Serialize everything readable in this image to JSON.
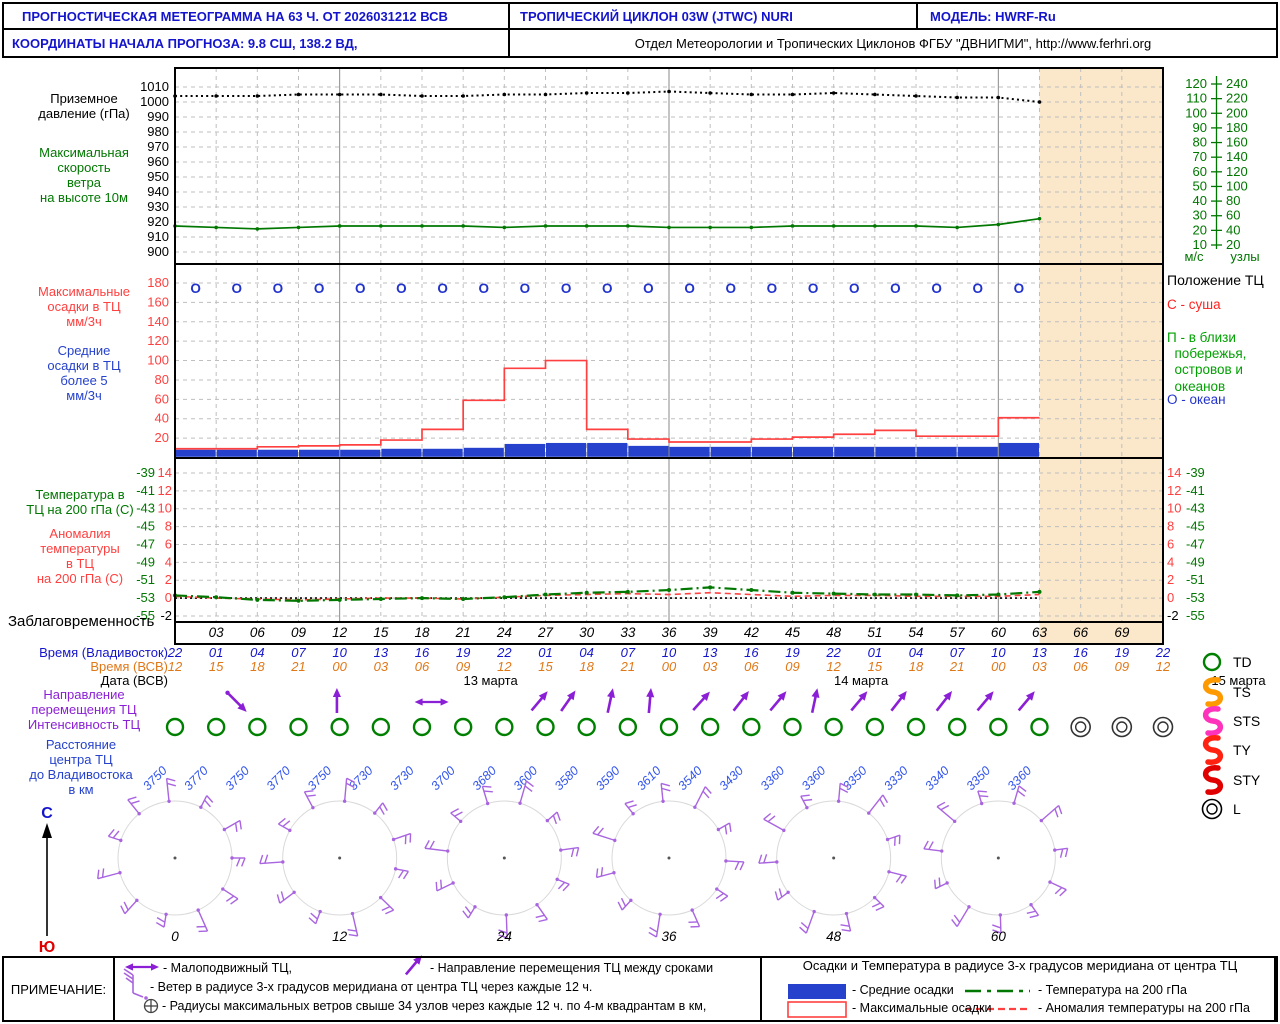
{
  "header": {
    "title": "ПРОГНОСТИЧЕСКАЯ МЕТЕОГРАММА НА 63 Ч. ОТ 2026031212 ВСВ",
    "cyclone": "ТРОПИЧЕСКИЙ ЦИКЛОН  03W (JTWC)   NURI",
    "model": "МОДЕЛЬ:   HWRF-Ru",
    "coords": "КООРДИНАТЫ НАЧАЛА ПРОГНОЗА:  9.8  СШ,    138.2  ВД,",
    "org": "Отдел Метеорологии и Тропических Циклонов ФГБУ \"ДВНИГМИ\",  http://www.ferhri.org"
  },
  "left_labels": {
    "pressure": "Приземное\nдавление (гПа)",
    "wind": "Максимальная\nскорость\nветра\nна высоте 10м",
    "precip_max": "Максимальные\nосадки в ТЦ\nмм/3ч",
    "precip_avg": "Средние\nосадки в ТЦ\nболее 5\nмм/3ч",
    "temp": "Температура в\nТЦ на 200 гПа (С)",
    "anomaly": "Аномалия\nтемпературы\nв ТЦ\nна 200 гПа (С)",
    "lead": "Заблаговременность",
    "vlad": "Время (Владивосток)",
    "utc": "Время (ВСВ)",
    "date": "Дата (ВСВ)",
    "direction": "Направление\nперемещения ТЦ",
    "intensity": "Интенсивность ТЦ",
    "distance": "Расстояние\nцентра ТЦ\nдо Владивостока\nв км",
    "note": "ПРИМЕЧАНИЕ:"
  },
  "right_panel": {
    "units_ms": "м/с",
    "units_knots": "узлы",
    "position_title": "Положение ТЦ",
    "land": "С - суша",
    "coast": "П - в близи\n  побережья,\n  островов и\n  океанов",
    "ocean": "О - океан"
  },
  "axes": {
    "pressure_hpa": [
      1010,
      1000,
      990,
      980,
      970,
      960,
      950,
      940,
      930,
      920,
      910,
      900
    ],
    "wind_ms": [
      120,
      110,
      100,
      90,
      80,
      70,
      60,
      50,
      40,
      30,
      20,
      10
    ],
    "wind_knots": [
      240,
      220,
      200,
      180,
      160,
      140,
      120,
      100,
      80,
      60,
      40,
      20
    ],
    "precip_mm": [
      180,
      160,
      140,
      120,
      100,
      80,
      60,
      40,
      20
    ],
    "anomaly_c": [
      14,
      12,
      10,
      8,
      6,
      4,
      2,
      0,
      -2
    ],
    "temp_c": [
      -39,
      -41,
      -43,
      -45,
      -47,
      -49,
      -51,
      -53,
      -55
    ]
  },
  "intensity_legend": [
    {
      "code": "TD",
      "symbol": "circle",
      "color": "#008000"
    },
    {
      "code": "TS",
      "symbol": "cyclone",
      "color": "#FF9900"
    },
    {
      "code": "STS",
      "symbol": "cyclone",
      "color": "#FF33BB"
    },
    {
      "code": "TY",
      "symbol": "cyclone",
      "color": "#FF2211"
    },
    {
      "code": "STY",
      "symbol": "cyclone",
      "color": "#E00000"
    },
    {
      "code": "L",
      "symbol": "double-circle",
      "color": "#000000"
    }
  ],
  "time_axis": {
    "lead": [
      "03",
      "06",
      "09",
      "12",
      "15",
      "18",
      "21",
      "24",
      "27",
      "30",
      "33",
      "36",
      "39",
      "42",
      "45",
      "48",
      "51",
      "54",
      "57",
      "60",
      "63",
      "66",
      "69"
    ],
    "vladivostok": [
      "22",
      "01",
      "04",
      "07",
      "10",
      "13",
      "16",
      "19",
      "22",
      "01",
      "04",
      "07",
      "10",
      "13",
      "16",
      "19",
      "22",
      "01",
      "04",
      "07",
      "10",
      "13",
      "16",
      "19",
      "22"
    ],
    "utc": [
      "12",
      "15",
      "18",
      "21",
      "00",
      "03",
      "06",
      "09",
      "12",
      "15",
      "18",
      "21",
      "00",
      "03",
      "06",
      "09",
      "12",
      "15",
      "18",
      "21",
      "00",
      "03",
      "06",
      "09",
      "12"
    ],
    "dates": [
      {
        "label": "13 марта",
        "h": 23
      },
      {
        "label": "14 марта",
        "h": 50
      },
      {
        "label": "15 марта",
        "h": 77.5
      }
    ]
  },
  "track": {
    "distances_km": [
      "3750",
      "3770",
      "3750",
      "3770",
      "3750",
      "3730",
      "3730",
      "3700",
      "3680",
      "3600",
      "3580",
      "3590",
      "3610",
      "3540",
      "3430",
      "3360",
      "3360",
      "3350",
      "3330",
      "3340",
      "3350",
      "3360"
    ],
    "intensity_td_hours": [
      0,
      3,
      6,
      9,
      12,
      15,
      18,
      21,
      24,
      27,
      30,
      33,
      36,
      39,
      42,
      45,
      48,
      51,
      54,
      57,
      60,
      63
    ],
    "intensity_l_hours": [
      66,
      69,
      72
    ],
    "direction_arrows": [
      {
        "h": 4.5,
        "angle": 135,
        "dot": true
      },
      {
        "h": 11.8,
        "angle": 0
      },
      {
        "h": 18.7,
        "stationary": true
      },
      {
        "h": 26.5,
        "angle": 40
      },
      {
        "h": 28.6,
        "angle": 35
      },
      {
        "h": 31.7,
        "angle": 12
      },
      {
        "h": 34.6,
        "angle": 5
      },
      {
        "h": 38.3,
        "angle": 42
      },
      {
        "h": 41.2,
        "angle": 38
      },
      {
        "h": 43.9,
        "angle": 40
      },
      {
        "h": 46.6,
        "angle": 12
      },
      {
        "h": 49.8,
        "angle": 40
      },
      {
        "h": 52.7,
        "angle": 38
      },
      {
        "h": 56,
        "angle": 38
      },
      {
        "h": 59,
        "angle": 40
      },
      {
        "h": 62,
        "angle": 40
      }
    ],
    "rose_hours": [
      0,
      12,
      24,
      36,
      48,
      60
    ],
    "rose_labels": [
      "0",
      "12",
      "24",
      "36",
      "48",
      "60"
    ]
  },
  "compass": {
    "north": "С",
    "south": "Ю"
  },
  "notes": {
    "stationary": "- Малоподвижный ТЦ,",
    "direction": "- Направление перемещения ТЦ между сроками",
    "wind": "- Ветер в радиусе 3-х градусов меридиана от центра ТЦ через каждые 12 ч.",
    "radii": "- Радиусы максимальных ветров свыше 34 узлов через каждые 12 ч. по 4-м квадрантам в км,"
  },
  "legend": {
    "title": "Осадки и Температура в радиусе 3-х градусов меридиана от центра ТЦ",
    "avg": "- Средние осадки",
    "max": "- Максимальные осадки",
    "temp": "- Температура на 200 гПа",
    "anom": "- Аномалия температуры на 200 гПа"
  },
  "colors": {
    "header_blue": "#1414CC",
    "green": "#007700",
    "red": "#FF4040",
    "blue": "#2642CC",
    "marker_blue": "#2233CC",
    "orange": "#E07818",
    "purple": "#8B1FD6",
    "barb": "#A964E0",
    "shade": "#FBE7C9",
    "grid": "#BFBFBF",
    "dateline": "#8A8A8A",
    "dist_blue": "#3355EE"
  },
  "chart_data": [
    {
      "type": "line",
      "panel": "surface-pressure-and-max-wind",
      "x_hours": [
        0,
        3,
        6,
        9,
        12,
        15,
        18,
        21,
        24,
        27,
        30,
        33,
        36,
        39,
        42,
        45,
        48,
        51,
        54,
        57,
        60,
        63
      ],
      "series": [
        {
          "name": "Приземное давление (гПа)",
          "color": "#000000",
          "style": "dotted",
          "values": [
            1004,
            1004,
            1004,
            1005,
            1005,
            1005,
            1004,
            1004,
            1005,
            1005,
            1006,
            1006,
            1007,
            1006,
            1005,
            1005,
            1006,
            1005,
            1004,
            1003,
            1003,
            1000
          ]
        },
        {
          "name": "Максимальная скорость ветра на высоте 10м (м/с)",
          "color": "#007700",
          "style": "solid",
          "values": [
            23,
            22,
            21,
            22,
            23,
            23,
            23,
            23,
            22,
            23,
            23,
            23,
            22,
            22,
            22,
            23,
            23,
            23,
            23,
            22,
            24,
            28
          ]
        }
      ],
      "ylim_hpa": [
        900,
        1010
      ],
      "ylim_ms": [
        10,
        120
      ],
      "ylim_knots": [
        20,
        240
      ],
      "grid": true
    },
    {
      "type": "bar",
      "panel": "precipitation",
      "interval_start_hours": [
        0,
        3,
        6,
        9,
        12,
        15,
        18,
        21,
        24,
        27,
        30,
        33,
        36,
        39,
        42,
        45,
        48,
        51,
        54,
        57,
        60
      ],
      "interval_length_hours": 3,
      "series": [
        {
          "name": "Максимальные осадки в ТЦ (мм/3ч)",
          "style": "step-outline",
          "color": "#FF4040",
          "values": [
            9,
            9,
            11,
            12,
            13,
            18,
            29,
            59,
            92,
            100,
            29,
            19,
            16,
            16,
            19,
            21,
            24,
            28,
            22,
            22,
            41
          ]
        },
        {
          "name": "Средние осадки в ТЦ (мм/3ч)",
          "style": "bar",
          "color": "#2642CC",
          "values": [
            8,
            8,
            8,
            8,
            8,
            9,
            9,
            10,
            14,
            15,
            15,
            12,
            11,
            11,
            11,
            11,
            11,
            11,
            11,
            11,
            15
          ]
        }
      ],
      "ylim": [
        0,
        180
      ],
      "position_markers": {
        "symbol": "О",
        "meaning": "океан",
        "hours_mid": [
          1.5,
          4.5,
          7.5,
          10.5,
          13.5,
          16.5,
          19.5,
          22.5,
          25.5,
          28.5,
          31.5,
          34.5,
          37.5,
          40.5,
          43.5,
          46.5,
          49.5,
          52.5,
          55.5,
          58.5,
          61.5
        ]
      }
    },
    {
      "type": "line",
      "panel": "temperature-200hpa",
      "x_hours": [
        0,
        3,
        6,
        9,
        12,
        15,
        18,
        21,
        24,
        27,
        30,
        33,
        36,
        39,
        42,
        45,
        48,
        51,
        54,
        57,
        60,
        63
      ],
      "series": [
        {
          "name": "Температура в ТЦ на 200 гПа (С)",
          "color": "#007700",
          "style": "dash-dot",
          "values": [
            -52.7,
            -52.9,
            -53.2,
            -53.3,
            -53.2,
            -53.1,
            -53,
            -53.1,
            -52.9,
            -52.6,
            -52.4,
            -52.3,
            -52.1,
            -51.8,
            -52.1,
            -52.4,
            -52.5,
            -52.6,
            -52.6,
            -52.7,
            -52.6,
            -52.3
          ]
        },
        {
          "name": "Аномалия температуры в ТЦ на 200 гПа (С)",
          "color": "#FF4040",
          "style": "dashed",
          "values": [
            0.2,
            0,
            -0.1,
            -0.2,
            -0.1,
            0,
            0,
            -0.1,
            0.1,
            0.3,
            0.4,
            0.5,
            0.4,
            0.6,
            0.4,
            0.2,
            0.3,
            0.3,
            0.2,
            0.2,
            0.2,
            0.4
          ]
        },
        {
          "name": "Нулевая линия аномалии",
          "color": "#000000",
          "style": "dotted",
          "values": [
            0,
            0,
            0,
            0,
            0,
            0,
            0,
            0,
            0,
            0,
            0,
            0,
            0,
            0,
            0,
            0,
            0,
            0,
            0,
            0,
            0,
            0
          ]
        }
      ],
      "ylim_temp": [
        -55,
        -39
      ],
      "ylim_anomaly": [
        -2,
        14
      ]
    }
  ]
}
